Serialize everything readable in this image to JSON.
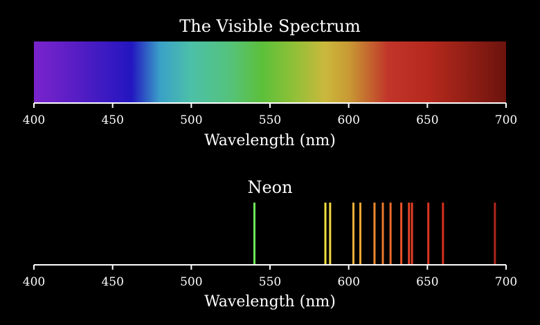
{
  "chart_data": [
    {
      "type": "heatmap",
      "title": "The Visible Spectrum",
      "xlabel": "Wavelength (nm)",
      "xlim": [
        400,
        700
      ],
      "xticks": [
        400,
        450,
        500,
        550,
        600,
        650,
        700
      ],
      "gradient": [
        {
          "wavelength": 400,
          "color": "#7a24cc"
        },
        {
          "wavelength": 425,
          "color": "#5a1ec4"
        },
        {
          "wavelength": 462,
          "color": "#2316c0"
        },
        {
          "wavelength": 480,
          "color": "#3aa0c8"
        },
        {
          "wavelength": 500,
          "color": "#4cc0a8"
        },
        {
          "wavelength": 525,
          "color": "#55c27a"
        },
        {
          "wavelength": 545,
          "color": "#5cc03a"
        },
        {
          "wavelength": 565,
          "color": "#8fc038"
        },
        {
          "wavelength": 585,
          "color": "#cbb83c"
        },
        {
          "wavelength": 600,
          "color": "#c89a34"
        },
        {
          "wavelength": 625,
          "color": "#c1352a"
        },
        {
          "wavelength": 650,
          "color": "#b6291e"
        },
        {
          "wavelength": 675,
          "color": "#921f15"
        },
        {
          "wavelength": 700,
          "color": "#6c130e"
        }
      ]
    },
    {
      "type": "bar",
      "title": "Neon",
      "xlabel": "Wavelength (nm)",
      "xlim": [
        400,
        700
      ],
      "xticks": [
        400,
        450,
        500,
        550,
        600,
        650,
        700
      ],
      "lines": [
        {
          "wavelength": 540.1,
          "color": "#6fe85a"
        },
        {
          "wavelength": 585.2,
          "color": "#f0e040"
        },
        {
          "wavelength": 588.2,
          "color": "#f2d840"
        },
        {
          "wavelength": 603.0,
          "color": "#f2b23a"
        },
        {
          "wavelength": 607.4,
          "color": "#f0a634"
        },
        {
          "wavelength": 616.4,
          "color": "#ee8a2e"
        },
        {
          "wavelength": 621.7,
          "color": "#ec7a2c"
        },
        {
          "wavelength": 626.6,
          "color": "#ea6a2a"
        },
        {
          "wavelength": 633.4,
          "color": "#e85228"
        },
        {
          "wavelength": 638.3,
          "color": "#e64426"
        },
        {
          "wavelength": 640.2,
          "color": "#e43e24"
        },
        {
          "wavelength": 650.6,
          "color": "#de3422"
        },
        {
          "wavelength": 659.9,
          "color": "#d62e20"
        },
        {
          "wavelength": 692.9,
          "color": "#b0261a"
        }
      ]
    }
  ]
}
